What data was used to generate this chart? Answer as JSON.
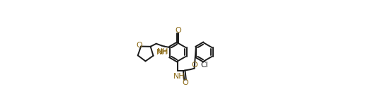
{
  "bg_color": "#ffffff",
  "line_color": "#1a1a1a",
  "heteroatom_color": "#8B6914",
  "cl_color": "#1a1a1a",
  "line_width": 1.4,
  "figsize": [
    5.27,
    1.47
  ],
  "dpi": 100,
  "xlim": [
    0,
    1
  ],
  "ylim": [
    0,
    1
  ]
}
